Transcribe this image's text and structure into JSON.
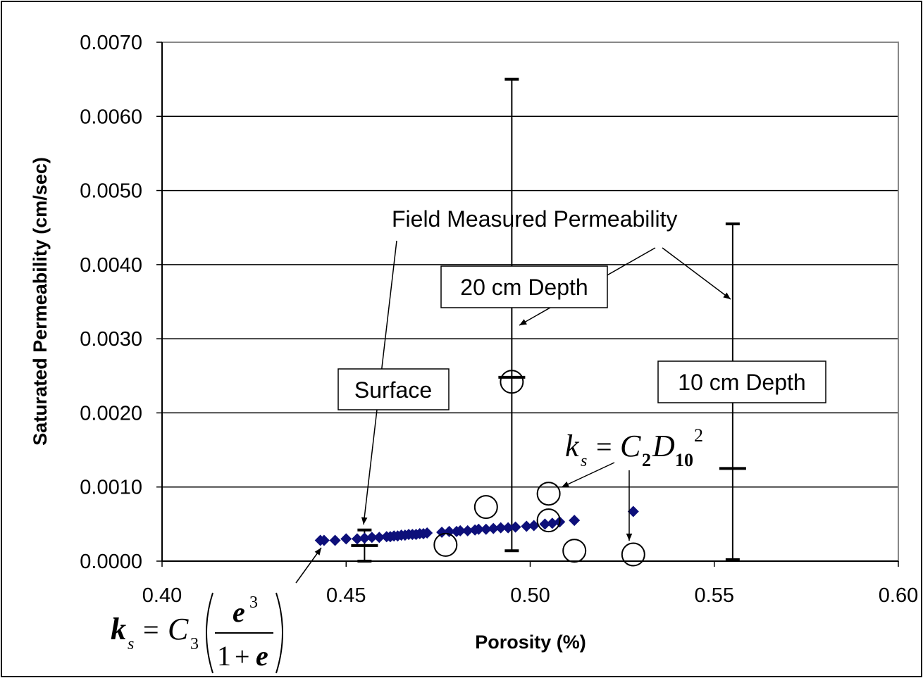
{
  "chart_data": {
    "type": "scatter",
    "xlabel": "Porosity (%)",
    "ylabel": "Saturated Permeability (cm/sec)",
    "xlim": [
      0.4,
      0.6
    ],
    "ylim": [
      0.0,
      0.007
    ],
    "x_ticks": [
      "0.40",
      "0.45",
      "0.50",
      "0.55",
      "0.60"
    ],
    "y_ticks": [
      "0.0000",
      "0.0010",
      "0.0020",
      "0.0030",
      "0.0040",
      "0.0050",
      "0.0060",
      "0.0070"
    ],
    "grid": "horizontal",
    "colors": {
      "diamonds": "#0d0f7a",
      "circles": "#000000",
      "error_bars": "#000000",
      "grid": "#000000",
      "frame": "#888888"
    },
    "series": [
      {
        "marker": "diamond",
        "x": [
          0.443,
          0.444,
          0.447,
          0.45,
          0.453,
          0.455,
          0.457,
          0.459,
          0.461,
          0.462,
          0.463,
          0.464,
          0.465,
          0.466,
          0.467,
          0.468,
          0.469,
          0.47,
          0.471,
          0.472,
          0.476,
          0.478,
          0.48,
          0.481,
          0.483,
          0.485,
          0.486,
          0.488,
          0.49,
          0.492,
          0.494,
          0.496,
          0.499,
          0.501,
          0.504,
          0.506,
          0.508,
          0.512,
          0.528
        ],
        "y": [
          0.00028,
          0.00028,
          0.00028,
          0.0003,
          0.0003,
          0.00031,
          0.00032,
          0.00032,
          0.00033,
          0.00033,
          0.00034,
          0.00034,
          0.00035,
          0.00035,
          0.00036,
          0.00036,
          0.00036,
          0.00037,
          0.00037,
          0.00038,
          0.00039,
          0.0004,
          0.0004,
          0.00041,
          0.00041,
          0.00042,
          0.00043,
          0.00043,
          0.00044,
          0.00045,
          0.00045,
          0.00046,
          0.00047,
          0.00048,
          0.0005,
          0.00051,
          0.00053,
          0.00055,
          0.00067
        ]
      },
      {
        "marker": "circle",
        "x": [
          0.477,
          0.488,
          0.495,
          0.505,
          0.505,
          0.512,
          0.528
        ],
        "y": [
          0.00022,
          0.00073,
          0.00242,
          0.00091,
          0.00055,
          0.00014,
          9e-05
        ]
      }
    ],
    "error_bars": [
      {
        "x": 0.455,
        "y": 0.00021,
        "low": 0.0,
        "high": 0.00042
      },
      {
        "x": 0.495,
        "y": 0.00248,
        "low": 0.00014,
        "high": 0.0065
      },
      {
        "x": 0.555,
        "y": 0.00125,
        "low": 2e-05,
        "high": 0.00455
      }
    ],
    "annotations": [
      {
        "text": "Field Measured Permeability"
      },
      {
        "text": "Surface"
      },
      {
        "text": "20 cm Depth"
      },
      {
        "text": "10 cm Depth"
      }
    ],
    "equations": {
      "eq1": {
        "k": "k",
        "sub_s": "s",
        "eq": "=",
        "C": "C",
        "sub_2": "2",
        "D": "D",
        "sub_10": "10",
        "sup_2": "2"
      },
      "eq2": {
        "k": "k",
        "sub_s": "s",
        "eq": "=",
        "C": "C",
        "sub_3": "3",
        "e": "e",
        "sup_3": "3",
        "one": "1",
        "plus": "+",
        "e2": "e"
      }
    }
  }
}
